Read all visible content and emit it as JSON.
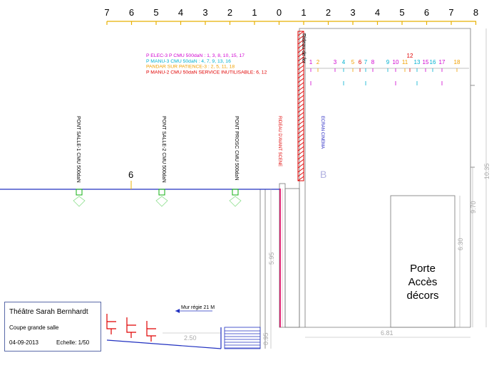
{
  "ruler": {
    "labels": [
      "7",
      "6",
      "5",
      "4",
      "3",
      "2",
      "1",
      "0",
      "1",
      "2",
      "3",
      "4",
      "5",
      "6",
      "7",
      "8"
    ]
  },
  "legend": {
    "lines": [
      {
        "text": "P ELEC-3 P CMU 500daN : 1, 3, 8, 10, 15, 17",
        "color": "#d000d0"
      },
      {
        "text": "P MANU-3 CMU 50daN : 4, 7, 9, 13, 16",
        "color": "#00b0d0"
      },
      {
        "text": "PANDAR SUR PATIENCE-3 : 2, 5, 11, 18",
        "color": "#f0a000"
      },
      {
        "text": "P MANU-2 CMU 50daN SERVICE INUTILISABLE: 6, 12",
        "color": "#e00000"
      }
    ]
  },
  "bar_numbers": [
    {
      "n": "1",
      "color": "#d000d0"
    },
    {
      "n": "2",
      "color": "#f0a000"
    },
    {
      "n": "3",
      "color": "#d000d0"
    },
    {
      "n": "4",
      "color": "#00b0d0"
    },
    {
      "n": "5",
      "color": "#f0a000"
    },
    {
      "n": "6",
      "color": "#e00000"
    },
    {
      "n": "7",
      "color": "#00b0d0"
    },
    {
      "n": "8",
      "color": "#d000d0"
    },
    {
      "n": "9",
      "color": "#00b0d0"
    },
    {
      "n": "10",
      "color": "#d000d0"
    },
    {
      "n": "11",
      "color": "#f0a000"
    },
    {
      "n": "12",
      "color": "#e00000"
    },
    {
      "n": "13",
      "color": "#00b0d0"
    },
    {
      "n": "15",
      "color": "#d000d0"
    },
    {
      "n": "16",
      "color": "#00b0d0"
    },
    {
      "n": "17",
      "color": "#d000d0"
    },
    {
      "n": "18",
      "color": "#f0a000"
    }
  ],
  "labels": {
    "pont_salle_1": "PONT SALLE-1 CMU 500daN",
    "pont_salle_2": "PONT SALLE-2 CMU 500daN",
    "pont_prosc": "PONT PROSC CMU 500daN",
    "rideau_avant_scene": "RIDEAU D'AVANT SCENE",
    "rideau_de_fer": "Rideau de fer",
    "ecran_cinema": "ECRAN CINEMA",
    "pont_six": "6",
    "mur_regie": "Mur régie 21 M",
    "porte": "Porte\nAccès\ndécors"
  },
  "dimensions": {
    "d1035": "10.35",
    "d970": "9.70",
    "d630": "6.30",
    "d595": "5.95",
    "d095": "0.95",
    "d250": "2.50",
    "d681": "6.81"
  },
  "title_block": {
    "title": "Théâtre Sarah Bernhardt",
    "subtitle": "Coupe grande salle",
    "date": "04-09-2013",
    "scale": "Echelle: 1/50"
  },
  "colors": {
    "ruler": "#e8b000",
    "outline": "#666666",
    "stage_floor": "#2030c0",
    "pont": "#10b010",
    "rideau": "#e00060",
    "fire_curtain": "#e00000",
    "ecran": "#2020c0"
  }
}
